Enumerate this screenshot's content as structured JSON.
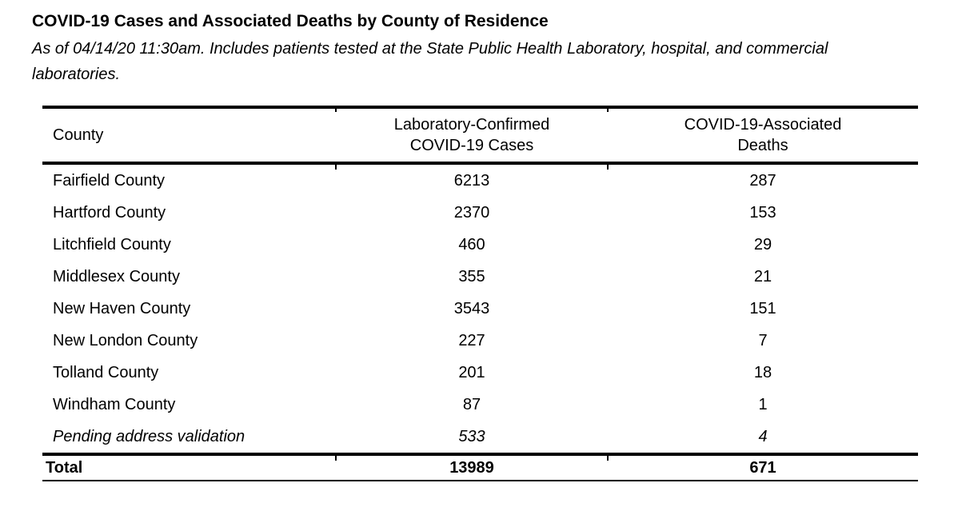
{
  "title": "COVID-19 Cases and Associated Deaths by County of Residence",
  "subtitle": "As of 04/14/20 11:30am. Includes patients tested at the State Public Health Laboratory, hospital, and commercial laboratories.",
  "table": {
    "columns": {
      "county": "County",
      "cases": "Laboratory-Confirmed COVID-19 Cases",
      "deaths": "COVID-19-Associated Deaths"
    },
    "rows": [
      {
        "county": "Fairfield County",
        "cases": "6213",
        "deaths": "287"
      },
      {
        "county": "Hartford County",
        "cases": "2370",
        "deaths": "153"
      },
      {
        "county": "Litchfield County",
        "cases": "460",
        "deaths": "29"
      },
      {
        "county": "Middlesex County",
        "cases": "355",
        "deaths": "21"
      },
      {
        "county": "New Haven County",
        "cases": "3543",
        "deaths": "151"
      },
      {
        "county": "New London County",
        "cases": "227",
        "deaths": "7"
      },
      {
        "county": "Tolland County",
        "cases": "201",
        "deaths": "18"
      },
      {
        "county": "Windham County",
        "cases": "87",
        "deaths": "1"
      },
      {
        "county": "Pending address validation",
        "cases": "533",
        "deaths": "4"
      }
    ],
    "total": {
      "label": "Total",
      "cases": "13989",
      "deaths": "671"
    }
  },
  "colors": {
    "text": "#000000",
    "rule": "#000000",
    "background": "#ffffff"
  }
}
